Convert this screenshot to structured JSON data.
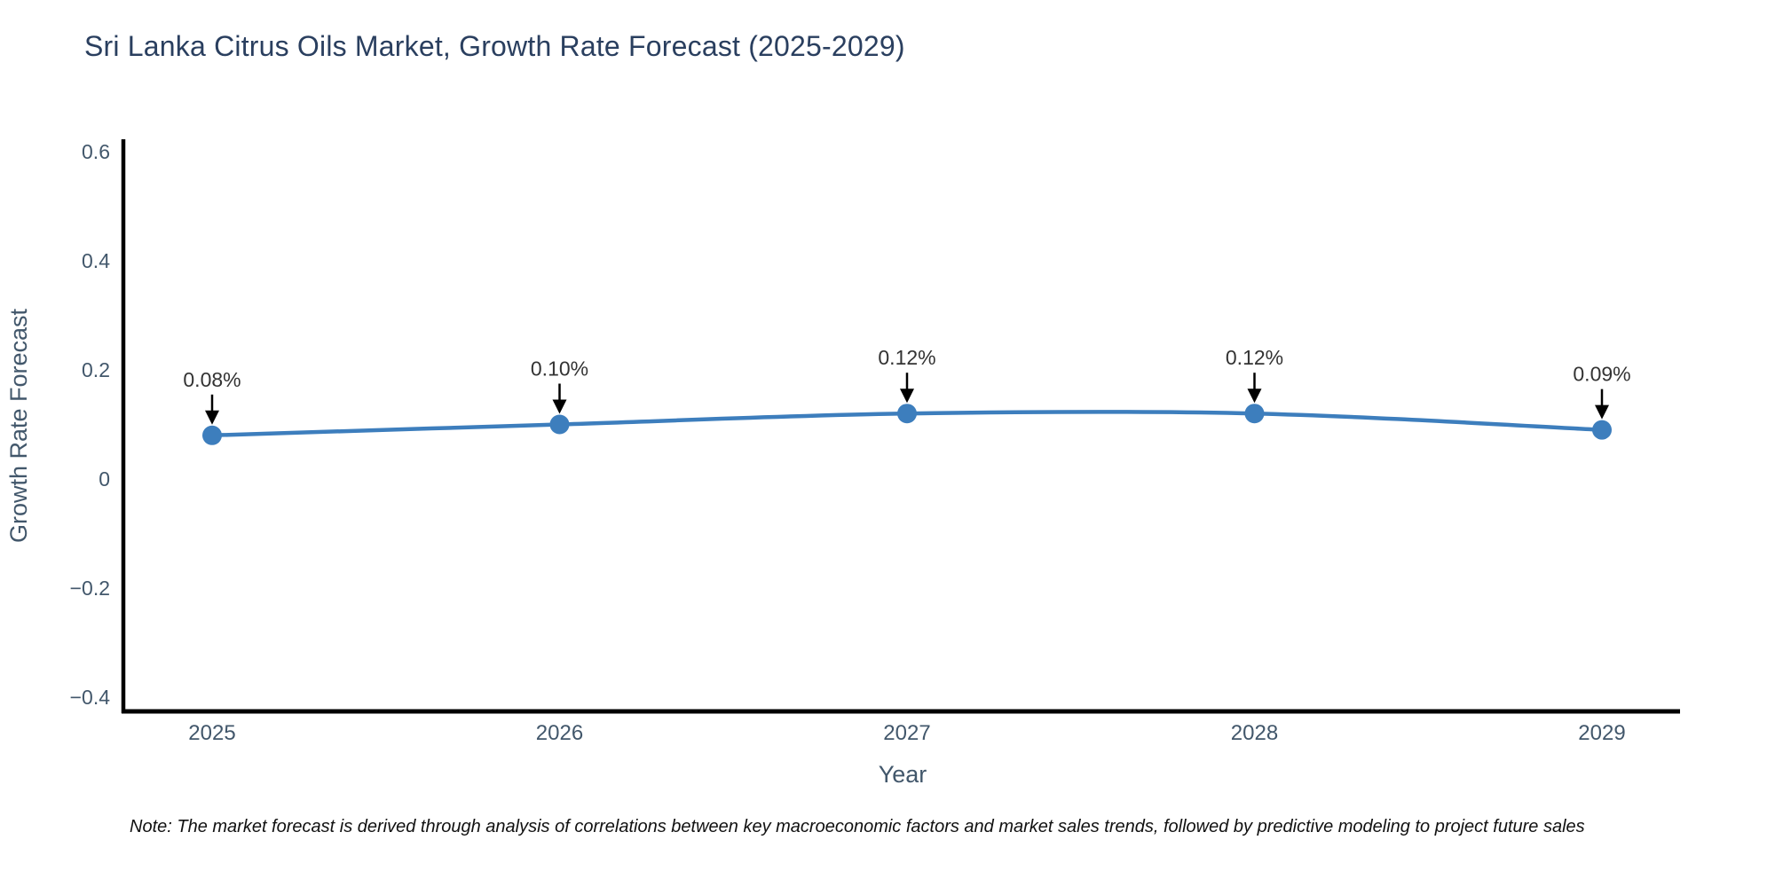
{
  "chart_data": {
    "type": "line",
    "title": "Sri Lanka Citrus Oils Market, Growth Rate Forecast (2025-2029)",
    "xlabel": "Year",
    "ylabel": "Growth Rate Forecast",
    "x": [
      2025,
      2026,
      2027,
      2028,
      2029
    ],
    "series": [
      {
        "name": "Growth Rate Forecast",
        "values": [
          0.08,
          0.1,
          0.12,
          0.12,
          0.09
        ],
        "point_labels": [
          "0.08%",
          "0.10%",
          "0.12%",
          "0.12%",
          "0.09%"
        ]
      }
    ],
    "x_tick_labels": [
      "2025",
      "2026",
      "2027",
      "2028",
      "2029"
    ],
    "y_ticks": [
      0.6,
      0.4,
      0.2,
      0,
      -0.2,
      -0.4
    ],
    "y_tick_labels": [
      "0.6",
      "0.4",
      "0.2",
      "0",
      "−0.2",
      "−0.4"
    ],
    "ylim": [
      -0.42,
      0.62
    ],
    "grid": false,
    "legend_position": "none",
    "line_smoothing": "spline",
    "annotations_have_arrows": true,
    "colors": {
      "line": "#3d7ebd",
      "marker": "#3d7ebd",
      "axis": "#000000",
      "tick_label": "#42576b",
      "axis_title": "#42576b",
      "title": "#2a3f5f",
      "annotation_text": "#333333",
      "annotation_arrow": "#000000",
      "background": "#ffffff"
    }
  },
  "note": "Note: The market forecast is derived through analysis of correlations between key macroeconomic factors and market sales trends, followed by predictive modeling to project future sales"
}
